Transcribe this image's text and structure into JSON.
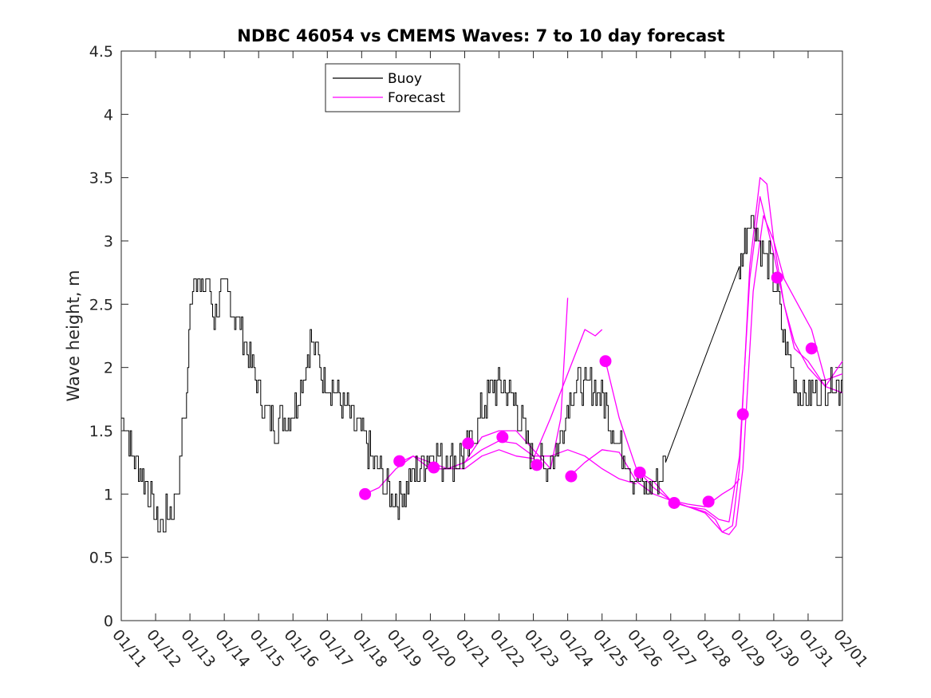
{
  "chart_data": {
    "type": "line",
    "title": "NDBC 46054 vs CMEMS Waves: 7 to 10 day forecast",
    "xlabel": "",
    "ylabel": "Wave height, m",
    "xlim": [
      0,
      21
    ],
    "ylim": [
      0,
      4.5
    ],
    "yticks": [
      0,
      0.5,
      1,
      1.5,
      2,
      2.5,
      3,
      3.5,
      4,
      4.5
    ],
    "ytick_labels": [
      "0",
      "0.5",
      "1",
      "1.5",
      "2",
      "2.5",
      "3",
      "3.5",
      "4",
      "4.5"
    ],
    "xtick_labels": [
      "01/11",
      "01/12",
      "01/13",
      "01/14",
      "01/15",
      "01/16",
      "01/17",
      "01/18",
      "01/19",
      "01/20",
      "01/21",
      "01/22",
      "01/23",
      "01/24",
      "01/25",
      "01/26",
      "01/27",
      "01/28",
      "01/29",
      "01/30",
      "01/31",
      "02/01"
    ],
    "legend": {
      "position": "top-left",
      "entries": [
        "Buoy",
        "Forecast"
      ]
    },
    "colors": {
      "buoy": "#000000",
      "forecast": "#ff00ff",
      "axes": "#262626"
    },
    "buoy_x_unit": "days since 01/11 00:00",
    "buoy": {
      "name": "Buoy",
      "x": [
        0,
        0.15,
        0.3,
        0.5,
        0.7,
        0.9,
        1.0,
        1.1,
        1.3,
        1.5,
        1.7,
        1.8,
        1.9,
        2.0,
        2.15,
        2.3,
        2.5,
        2.7,
        2.9,
        3.1,
        3.3,
        3.5,
        3.7,
        3.9,
        4.1,
        4.3,
        4.5,
        4.7,
        4.9,
        5.1,
        5.3,
        5.5,
        5.7,
        5.9,
        6.1,
        6.3,
        6.5,
        6.7,
        6.9,
        7.1,
        7.3,
        7.5,
        7.7,
        7.9,
        8.1,
        8.3,
        8.5,
        8.7,
        8.9,
        9.1,
        9.3,
        9.5,
        9.7,
        9.9,
        10.1,
        10.3,
        10.5,
        10.7,
        10.9,
        11.1,
        11.3,
        11.5,
        11.7,
        11.9,
        12.1,
        12.3,
        12.5,
        12.7,
        12.9,
        13.1,
        13.3,
        13.5,
        13.7,
        13.9,
        14.1,
        14.3,
        14.5,
        14.7,
        14.9,
        15.1,
        15.3,
        15.5,
        15.7,
        15.85,
        18.0,
        18.3,
        18.5,
        18.7,
        18.9,
        19.1,
        19.3,
        19.5,
        19.7,
        19.9,
        20.1,
        20.3,
        20.5,
        20.7,
        20.9,
        21.0
      ],
      "y": [
        1.6,
        1.55,
        1.3,
        1.2,
        1.1,
        0.9,
        0.85,
        0.75,
        0.85,
        0.9,
        1.2,
        1.6,
        1.8,
        2.5,
        2.8,
        2.6,
        2.7,
        2.4,
        2.55,
        2.6,
        2.4,
        2.3,
        2.1,
        1.9,
        1.7,
        1.6,
        1.55,
        1.6,
        1.6,
        1.7,
        1.95,
        2.2,
        2.1,
        1.9,
        1.85,
        1.8,
        1.7,
        1.6,
        1.5,
        1.4,
        1.3,
        1.2,
        1.05,
        0.95,
        0.95,
        1.05,
        1.15,
        1.2,
        1.3,
        1.35,
        1.25,
        1.3,
        1.25,
        1.3,
        1.35,
        1.5,
        1.65,
        1.8,
        1.85,
        1.85,
        1.8,
        1.7,
        1.5,
        1.35,
        1.3,
        1.2,
        1.3,
        1.35,
        1.6,
        1.8,
        1.85,
        1.85,
        1.85,
        1.8,
        1.7,
        1.5,
        1.4,
        1.3,
        1.15,
        1.05,
        1.05,
        1.1,
        1.15,
        1.25,
        2.8,
        3.2,
        3.1,
        2.9,
        2.8,
        2.6,
        2.2,
        2.0,
        1.85,
        1.75,
        1.8,
        1.8,
        1.85,
        1.9,
        1.85,
        1.9
      ]
    },
    "forecast_series": [
      {
        "name": "Forecast",
        "x": [
          7.1,
          7.5,
          8.0,
          8.5,
          9.0,
          9.5,
          10.0,
          10.5,
          11.0,
          11.5,
          12.0,
          12.5,
          12.8,
          13.0
        ],
        "y": [
          1.0,
          1.05,
          1.2,
          1.3,
          1.25,
          1.2,
          1.25,
          1.45,
          1.5,
          1.5,
          1.35,
          1.2,
          1.6,
          2.55
        ]
      },
      {
        "name": "Forecast",
        "x": [
          8.1,
          8.5,
          9.0,
          9.5,
          10.0,
          10.5,
          11.0,
          11.5,
          12.0,
          12.5,
          13.0,
          13.5,
          13.8,
          14.0
        ],
        "y": [
          1.25,
          1.3,
          1.2,
          1.2,
          1.2,
          1.3,
          1.35,
          1.3,
          1.28,
          1.6,
          1.95,
          2.3,
          2.25,
          2.3
        ]
      },
      {
        "name": "Forecast",
        "x": [
          9.1,
          9.5,
          10.0,
          10.5,
          11.0,
          11.5,
          12.0,
          12.5,
          13.0,
          13.5,
          14.0,
          14.5,
          15.0
        ],
        "y": [
          1.2,
          1.2,
          1.25,
          1.35,
          1.42,
          1.4,
          1.3,
          1.3,
          1.35,
          1.3,
          1.2,
          1.12,
          1.08
        ]
      },
      {
        "name": "Forecast",
        "x": [
          13.1,
          13.5,
          14.0,
          14.5,
          15.0,
          15.5,
          16.0,
          16.5,
          17.0,
          17.5,
          17.8,
          18.0
        ],
        "y": [
          1.15,
          1.25,
          1.35,
          1.33,
          1.1,
          1.0,
          0.95,
          0.92,
          0.9,
          1.0,
          1.05,
          1.12
        ]
      },
      {
        "name": "Forecast",
        "x": [
          14.1,
          14.5,
          15.0,
          15.5,
          16.0,
          16.5,
          17.0,
          17.5,
          17.8,
          18.0,
          18.3,
          18.6,
          18.8,
          19.0,
          19.3,
          19.6,
          20.0,
          20.5,
          21.0
        ],
        "y": [
          2.05,
          1.6,
          1.2,
          1.05,
          0.95,
          0.9,
          0.85,
          0.7,
          0.75,
          1.2,
          2.8,
          3.5,
          3.45,
          3.0,
          2.5,
          2.15,
          2.05,
          1.85,
          1.8
        ]
      },
      {
        "name": "Forecast",
        "x": [
          15.1,
          15.5,
          16.0,
          16.5,
          17.0,
          17.4,
          17.7,
          18.0,
          18.3,
          18.6,
          19.0,
          19.3,
          19.6,
          20.0,
          20.5,
          21.0
        ],
        "y": [
          1.17,
          1.1,
          0.95,
          0.9,
          0.88,
          0.8,
          0.78,
          1.3,
          2.7,
          3.35,
          2.9,
          2.5,
          2.2,
          2.0,
          1.85,
          2.05
        ]
      },
      {
        "name": "Forecast",
        "x": [
          16.1,
          16.5,
          17.0,
          17.3,
          17.5,
          17.7,
          17.9,
          18.1,
          18.4,
          18.7,
          19.0,
          19.3,
          19.7,
          20.1,
          20.5,
          21.0
        ],
        "y": [
          0.93,
          0.9,
          0.86,
          0.8,
          0.7,
          0.68,
          0.75,
          1.2,
          2.6,
          3.2,
          3.0,
          2.7,
          2.5,
          2.3,
          1.9,
          1.95
        ]
      }
    ],
    "forecast_markers": {
      "x": [
        7.1,
        8.1,
        9.1,
        10.1,
        11.1,
        12.1,
        13.1,
        14.1,
        15.1,
        16.1,
        17.1,
        18.1,
        19.1,
        20.1
      ],
      "y": [
        1.0,
        1.26,
        1.21,
        1.4,
        1.45,
        1.23,
        1.14,
        2.05,
        1.17,
        0.93,
        0.94,
        1.63,
        2.71,
        2.15
      ]
    }
  }
}
